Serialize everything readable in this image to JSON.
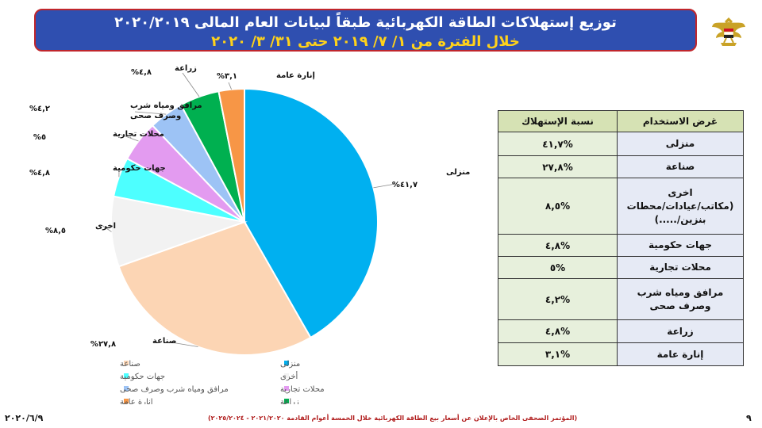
{
  "header": {
    "title_line1": "توزيع إستهلاكات الطاقة الكهربائية طبقاً لبيانات العام المالى ٢٠٢٠/٢٠١٩",
    "title_line2": "خلال الفترة من ١/ ٧/ ٢٠١٩ حتى ٣١/ ٣/ ٢٠٢٠"
  },
  "chart_data": {
    "type": "pie",
    "slices": [
      {
        "name": "منزلى",
        "value": 41.7,
        "label": "منزلى",
        "pct_label": "%٤١,٧",
        "color": "#00b0f0"
      },
      {
        "name": "صناعة",
        "value": 27.8,
        "label": "صناعة",
        "pct_label": "%٢٧,٨",
        "color": "#fcd5b4"
      },
      {
        "name": "اخرى",
        "value": 8.5,
        "label": "اخرى",
        "pct_label": "%٨,٥",
        "color": "#f2f2f2"
      },
      {
        "name": "جهات حكومية",
        "value": 4.8,
        "label": "جهات حكومية",
        "pct_label": "%٤,٨",
        "color": "#4dffff"
      },
      {
        "name": "محلات تجارية",
        "value": 5,
        "label": "محلات تجارية",
        "pct_label": "%٥",
        "color": "#e39bf0"
      },
      {
        "name": "مرافق ومياه شرب وصرف صحى",
        "value": 4.2,
        "label": "مرافق ومياه شرب وصرف صحى",
        "label_lines": [
          "مرافق ومياه شرب",
          "وصرف صحى"
        ],
        "pct_label": "%٤,٢",
        "color": "#9dc3f5"
      },
      {
        "name": "زراعة",
        "value": 4.8,
        "label": "زراعة",
        "pct_label": "%٤,٨",
        "color": "#00b050"
      },
      {
        "name": "انارة عامة",
        "value": 3.1,
        "label": "إنارة عامة",
        "pct_label": "%٣,١",
        "color": "#f79646"
      }
    ],
    "legend_position": "bottom",
    "legend": [
      "منزلى",
      "صناعة",
      "أخرى",
      "جهات حكومية",
      "محلات تجارية",
      "مرافق ومياه شرب وصرف صحى",
      "زراعة",
      "انارة عامة"
    ]
  },
  "table": {
    "headers": [
      "غرض الاستخدام",
      "نسبة الإستهلاك"
    ],
    "rows": [
      {
        "category": "منزلى",
        "value": "%٤١,٧"
      },
      {
        "category": "صناعة",
        "value": "%٢٧,٨"
      },
      {
        "category": "اخرى\n(مكاتب/عيادات/محطات\nبنزين/.....)",
        "value": "%٨,٥"
      },
      {
        "category": "جهات حكومية",
        "value": "%٤,٨"
      },
      {
        "category": "محلات تجارية",
        "value": "%٥"
      },
      {
        "category": "مرافق ومياه شرب\nوصرف صحى",
        "value": "%٤,٢"
      },
      {
        "category": "زراعة",
        "value": "%٤,٨"
      },
      {
        "category": "إنارة عامة",
        "value": "%٣,١"
      }
    ]
  },
  "footer": {
    "date": "٢٠٢٠/٦/٩",
    "caption": "(المؤتمر الصحفى الخاص بالإعلان عن أسعار بيع الطاقة الكهربائية خلال الخمسة أعوام القادمة ٢٠٢١/٢٠٢٠ - ٢٠٢٥/٢٠٢٤)",
    "page": "٩"
  }
}
